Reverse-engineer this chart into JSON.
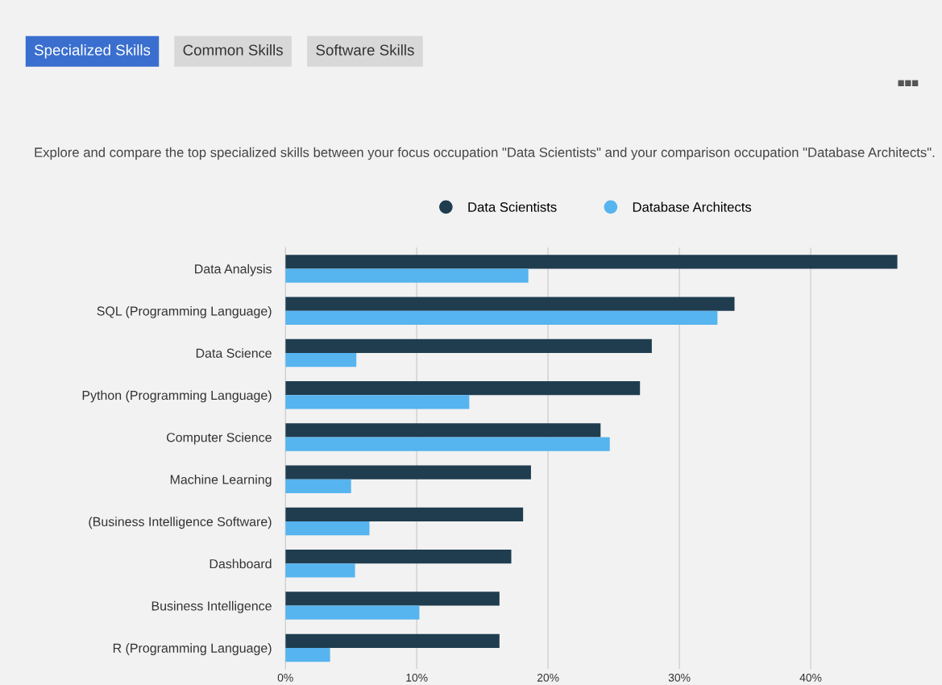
{
  "chart_data": {
    "type": "bar",
    "orientation": "horizontal",
    "subtitle": "Explore and compare the top specialized skills between your focus occupation \"Data Scientists\" and your comparison occupation \"Database Architects\".",
    "annotations": [
      "Specialized Skills",
      "Common Skills",
      "Software Skills"
    ],
    "categories": [
      "Data Analysis",
      "SQL (Programming Language)",
      "Data Science",
      "Python (Programming Language)",
      "Computer Science",
      "Machine Learning",
      "(Business Intelligence Software)",
      "Dashboard",
      "Business Intelligence",
      "R (Programming Language)"
    ],
    "series": [
      {
        "name": "Data Scientists",
        "color": "#1f3d4f",
        "values": [
          46.6,
          34.2,
          27.9,
          27.0,
          24.0,
          18.7,
          18.1,
          17.2,
          16.3,
          16.3
        ]
      },
      {
        "name": "Database Architects",
        "color": "#56b4ef",
        "values": [
          18.5,
          32.9,
          5.4,
          14.0,
          24.7,
          5.0,
          6.4,
          5.3,
          10.2,
          3.4
        ]
      }
    ],
    "xlim": [
      0,
      46.7
    ],
    "xticks": [
      {
        "value": 0,
        "label": "0%"
      },
      {
        "value": 10,
        "label": "10%"
      },
      {
        "value": 20,
        "label": "20%"
      },
      {
        "value": 30,
        "label": "30%"
      },
      {
        "value": 40,
        "label": "40%"
      }
    ],
    "grid": "x",
    "legend": "top"
  }
}
